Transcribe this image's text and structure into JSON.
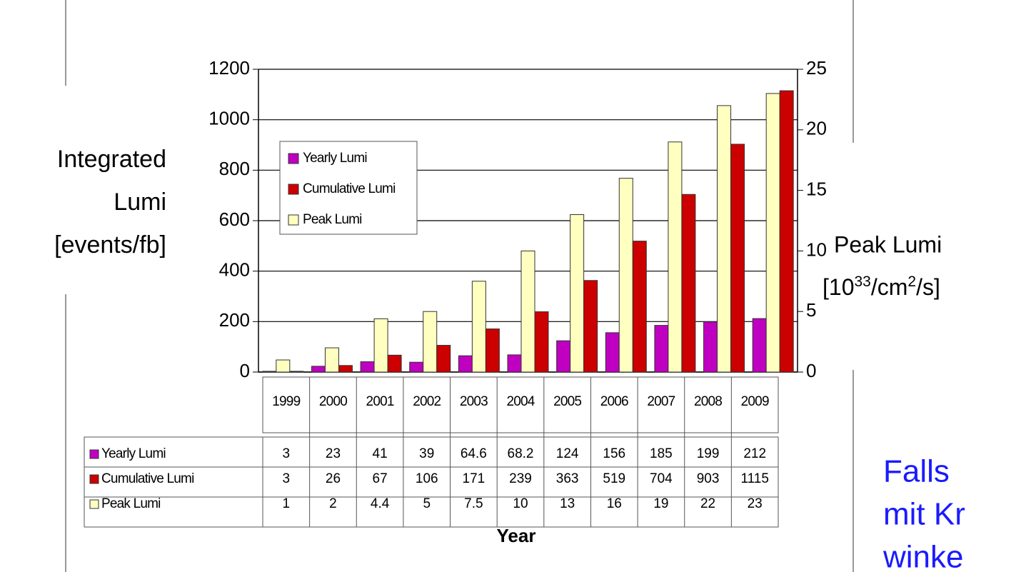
{
  "chart_data": {
    "type": "bar",
    "y_label": [
      "Integrated",
      "Lumi",
      "[events/fb]"
    ],
    "y2_label": [
      "Peak Lumi",
      "[10",
      "33",
      "/cm",
      "2",
      "/s]"
    ],
    "x_label": "Year",
    "categories": [
      "1999",
      "2000",
      "2001",
      "2002",
      "2003",
      "2004",
      "2005",
      "2006",
      "2007",
      "2008",
      "2009"
    ],
    "series": [
      {
        "name": "Yearly Lumi",
        "color": "#c000c0",
        "values": [
          3,
          23,
          41,
          39,
          64.6,
          68.2,
          124,
          156,
          185,
          199,
          212
        ]
      },
      {
        "name": "Cumulative Lumi",
        "color": "#cc0000",
        "values": [
          3,
          26,
          67,
          106,
          171,
          239,
          363,
          519,
          704,
          903,
          1115
        ]
      },
      {
        "name": "Peak Lumi",
        "color": "#ffffc0",
        "axis": "y2",
        "values": [
          1,
          2,
          4.4,
          5,
          7.5,
          10,
          13,
          16,
          19,
          22,
          23
        ]
      }
    ],
    "ylim": [
      0,
      1200
    ],
    "yticks": [
      0,
      200,
      400,
      600,
      800,
      1000,
      1200
    ],
    "y2lim": [
      0,
      25
    ],
    "y2ticks": [
      0,
      5,
      10,
      15,
      20,
      25
    ],
    "grid": true,
    "annotation": [
      "Falls",
      "mit Kr",
      "winke"
    ]
  }
}
